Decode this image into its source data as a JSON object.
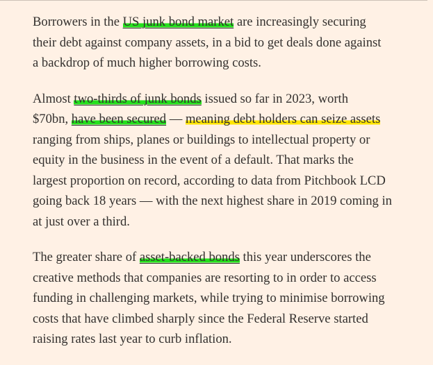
{
  "paragraphs": [
    {
      "lines": [
        [
          {
            "text": "Borrowers in the "
          },
          {
            "text": "US junk bond market",
            "link": true,
            "highlight": "#23e01c"
          },
          {
            "text": " are increasingly securing"
          }
        ],
        [
          {
            "text": "their debt against company assets, in a bid to get deals done against"
          }
        ],
        [
          {
            "text": "a backdrop of much higher borrowing costs."
          }
        ]
      ]
    },
    {
      "lines": [
        [
          {
            "text": "Almost "
          },
          {
            "text": "two-thirds of junk bonds",
            "link": true,
            "highlight": "#23e01c"
          },
          {
            "text": " issued so far in 2023, worth"
          }
        ],
        [
          {
            "text": "$70bn, "
          },
          {
            "text": "have been secured",
            "link": true,
            "highlight": "#23e01c"
          },
          {
            "text": " — "
          },
          {
            "text": "meaning debt holders can seize assets",
            "highlight": "#ffe500"
          }
        ],
        [
          {
            "text": "ranging from ships, planes or buildings to intellectual property or"
          }
        ],
        [
          {
            "text": "equity in the business in the event of a default. That marks the"
          }
        ],
        [
          {
            "text": "largest proportion on record, according to data from Pitchbook LCD"
          }
        ],
        [
          {
            "text": "going back 18 years — with the next highest share in 2019 coming in"
          }
        ],
        [
          {
            "text": "at just over a third."
          }
        ]
      ]
    },
    {
      "lines": [
        [
          {
            "text": "The greater share of "
          },
          {
            "text": "asset-backed bonds",
            "link": true,
            "highlight": "#23e01c"
          },
          {
            "text": " this year underscores the"
          }
        ],
        [
          {
            "text": "creative methods that companies are resorting to in order to access"
          }
        ],
        [
          {
            "text": "funding in challenging markets, while trying to minimise borrowing"
          }
        ],
        [
          {
            "text": "costs that have climbed sharply since the Federal Reserve started"
          }
        ],
        [
          {
            "text": "raising rates last year to curb inflation."
          }
        ]
      ]
    }
  ]
}
